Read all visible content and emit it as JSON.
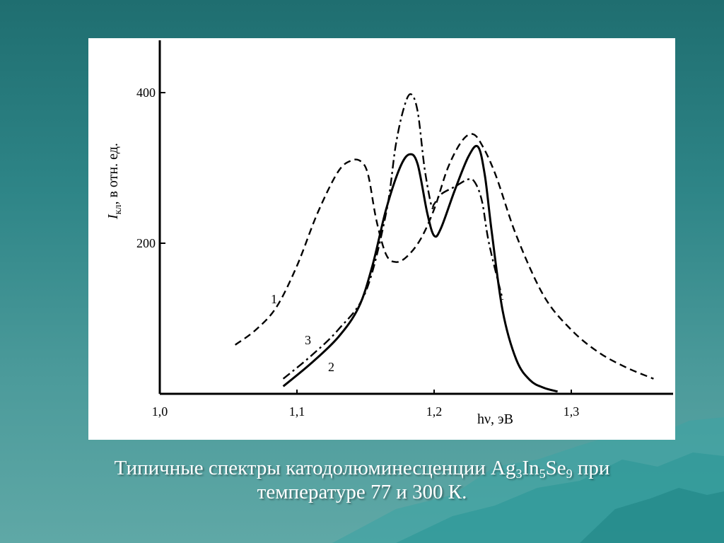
{
  "caption": {
    "line1_parts": [
      "Типичные спектры катодолюминесценции Ag",
      "3",
      "In",
      "5",
      "Se",
      "9",
      " при"
    ],
    "line2": "температуре 77 и 300 К."
  },
  "chart_data": {
    "type": "line",
    "xlabel": "hν, эВ",
    "ylabel_italic": "I",
    "ylabel_sub": "кл",
    "ylabel_rest": ", в отн. ед.",
    "xlim": [
      1.0,
      1.36
    ],
    "ylim": [
      0,
      470
    ],
    "x_ticks": [
      1.0,
      1.1,
      1.2,
      1.3
    ],
    "x_tick_labels": [
      "1,0",
      "1,1",
      "1,2",
      "1,3"
    ],
    "y_ticks": [
      200,
      400
    ],
    "y_tick_labels": [
      "200",
      "400"
    ],
    "grid": false,
    "series": [
      {
        "name": "1",
        "style": "dashed",
        "x": [
          1.055,
          1.07,
          1.085,
          1.1,
          1.115,
          1.13,
          1.14,
          1.147,
          1.152,
          1.158,
          1.165,
          1.172,
          1.18,
          1.19,
          1.2,
          1.21,
          1.22,
          1.228,
          1.235,
          1.245,
          1.26,
          1.28,
          1.3,
          1.32,
          1.34,
          1.36
        ],
        "y": [
          65,
          85,
          115,
          170,
          240,
          295,
          310,
          308,
          290,
          230,
          185,
          175,
          182,
          205,
          245,
          300,
          335,
          345,
          330,
          290,
          210,
          130,
          85,
          55,
          35,
          20
        ]
      },
      {
        "name": "2",
        "style": "solid",
        "x": [
          1.09,
          1.11,
          1.13,
          1.145,
          1.155,
          1.165,
          1.175,
          1.182,
          1.188,
          1.195,
          1.2,
          1.205,
          1.215,
          1.225,
          1.232,
          1.237,
          1.242,
          1.25,
          1.26,
          1.27,
          1.28,
          1.29
        ],
        "y": [
          10,
          40,
          75,
          115,
          170,
          245,
          300,
          318,
          305,
          240,
          210,
          220,
          270,
          315,
          328,
          290,
          215,
          110,
          45,
          18,
          8,
          3
        ]
      },
      {
        "name": "3",
        "style": "dash-dot",
        "x": [
          1.09,
          1.11,
          1.13,
          1.15,
          1.165,
          1.172,
          1.178,
          1.183,
          1.188,
          1.193,
          1.198,
          1.2,
          1.205,
          1.215,
          1.225,
          1.23,
          1.235,
          1.24,
          1.25
        ],
        "y": [
          20,
          50,
          85,
          135,
          240,
          330,
          380,
          398,
          375,
          300,
          250,
          252,
          265,
          275,
          285,
          280,
          255,
          200,
          125
        ]
      }
    ],
    "annotations": [
      "1",
      "2",
      "3"
    ]
  }
}
